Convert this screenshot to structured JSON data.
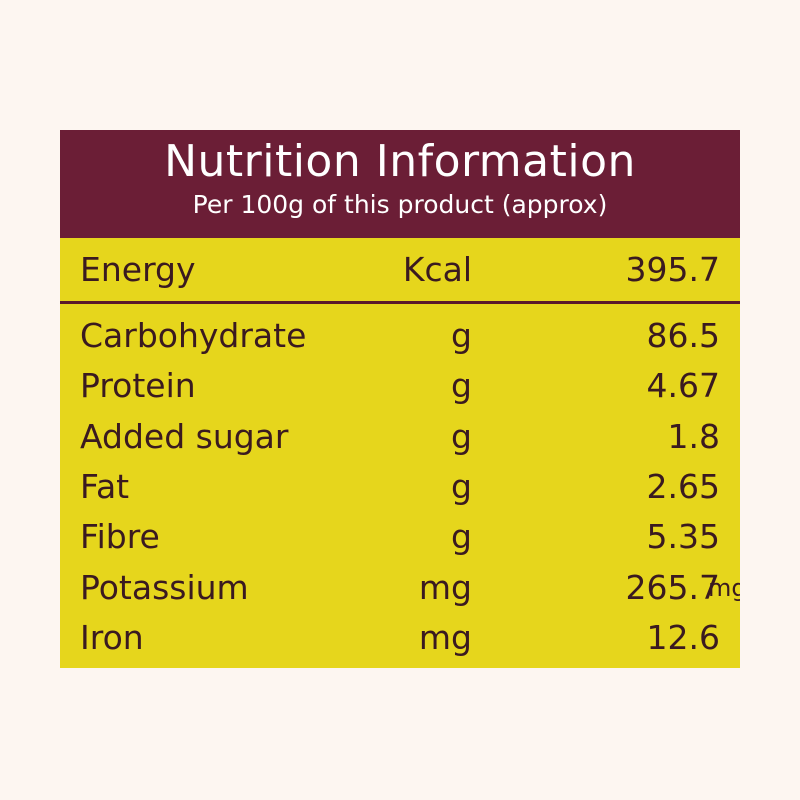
{
  "header": {
    "title": "Nutrition Information",
    "subtitle": "Per 100g of this product (approx)"
  },
  "table": {
    "rows": [
      {
        "name": "Energy",
        "unit": "Kcal",
        "value": 395.7
      },
      {
        "name": "Carbohydrate",
        "unit": "g",
        "value": 86.5
      },
      {
        "name": "Protein",
        "unit": "g",
        "value": 4.67
      },
      {
        "name": "Added sugar",
        "unit": "g",
        "value": 1.8
      },
      {
        "name": "Fat",
        "unit": "g",
        "value": 2.65
      },
      {
        "name": "Fibre",
        "unit": "g",
        "value": 5.35
      },
      {
        "name": "Potassium",
        "unit": "mg",
        "value": 265.7,
        "suffix": "mg"
      },
      {
        "name": "Iron",
        "unit": "mg",
        "value": 12.6
      }
    ]
  }
}
